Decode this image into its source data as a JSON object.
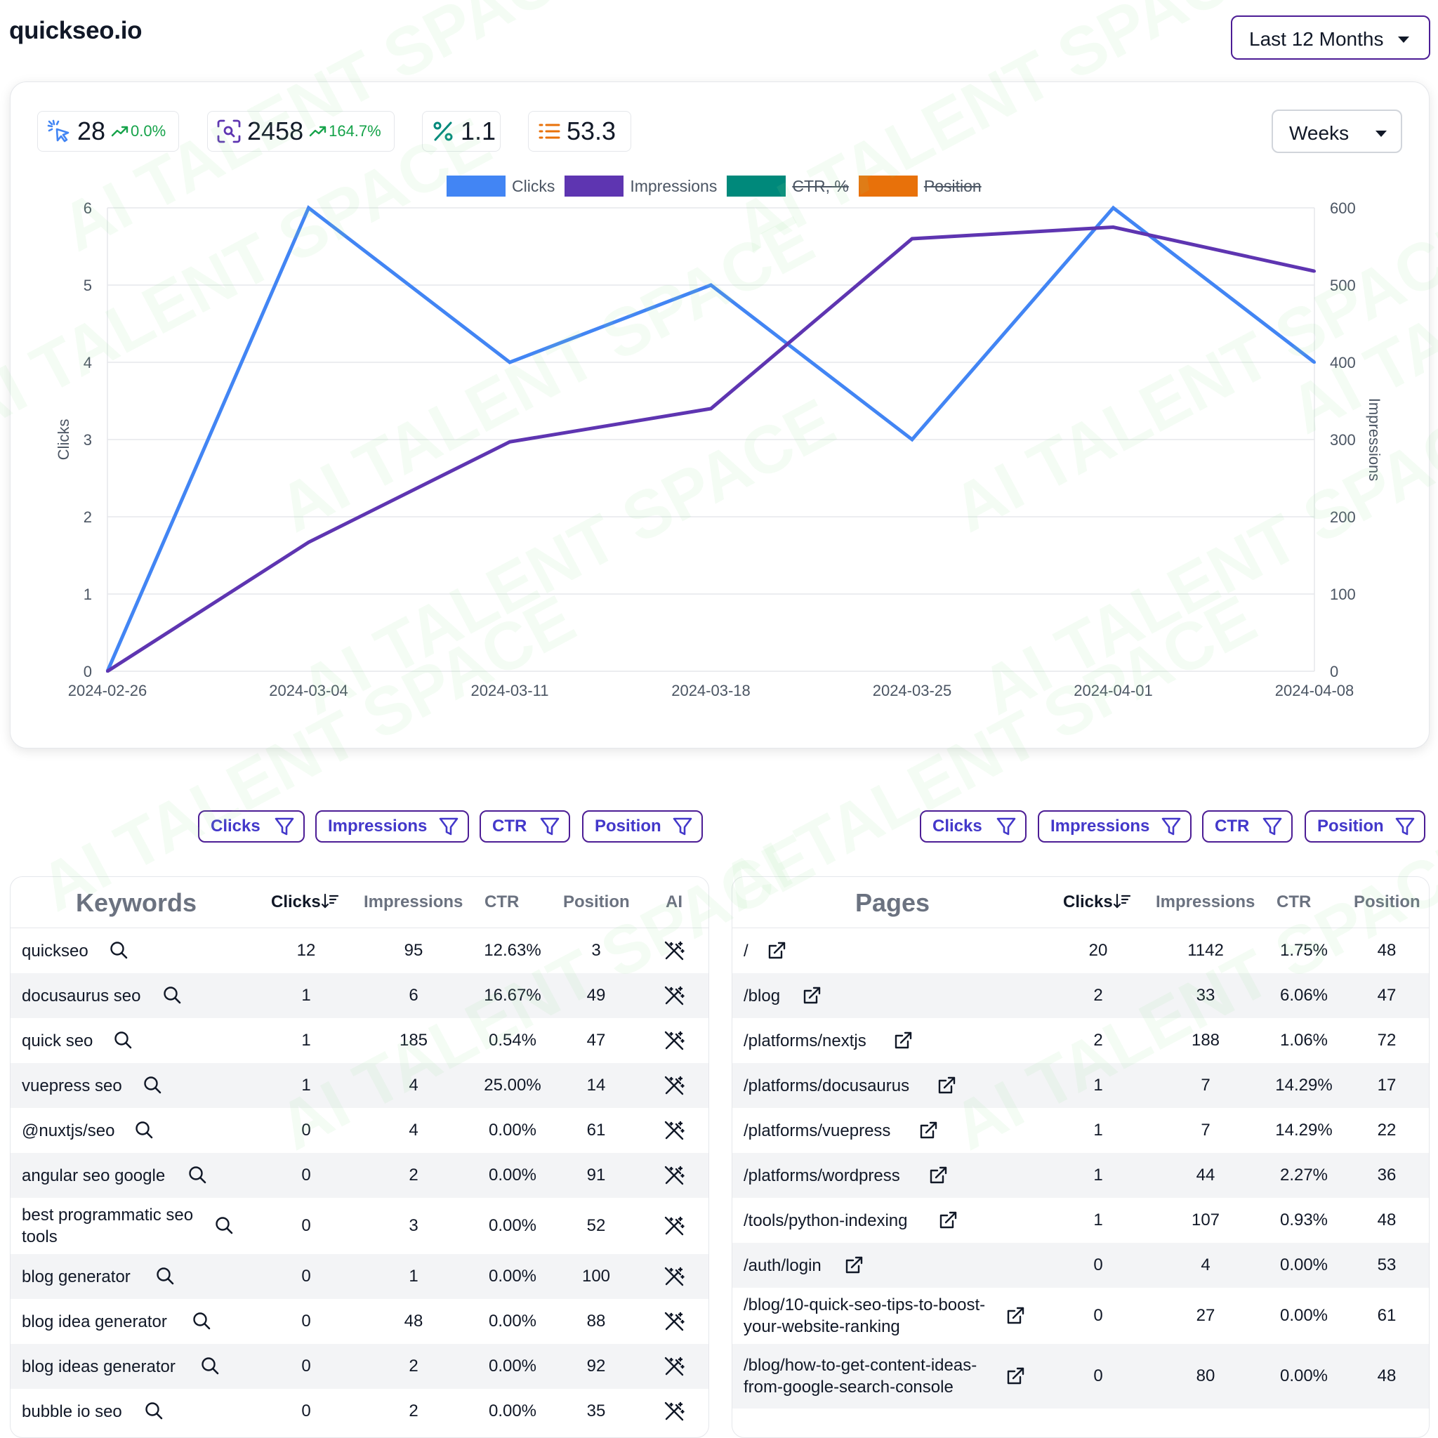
{
  "brand": "quickseo.io",
  "date_range": "Last 12 Months",
  "granularity": "Weeks",
  "stats": {
    "clicks": {
      "value": "28",
      "change": "0.0%"
    },
    "impressions": {
      "value": "2458",
      "change": "164.7%"
    },
    "ctr": {
      "value": "1.1"
    },
    "position": {
      "value": "53.3"
    }
  },
  "colors": {
    "clicks": "#4285f4",
    "impressions": "#5e35b1",
    "ctr": "#00897b",
    "position": "#e8710a",
    "accent": "#4338ca"
  },
  "legend": [
    {
      "label": "Clicks",
      "color": "#4285f4",
      "hidden": false
    },
    {
      "label": "Impressions",
      "color": "#5e35b1",
      "hidden": false
    },
    {
      "label": "CTR, %",
      "color": "#00897b",
      "hidden": true
    },
    {
      "label": "Position",
      "color": "#e8710a",
      "hidden": true
    }
  ],
  "chart_data": {
    "type": "line",
    "x": [
      "2024-02-26",
      "2024-03-04",
      "2024-03-11",
      "2024-03-18",
      "2024-03-25",
      "2024-04-01",
      "2024-04-08"
    ],
    "series": [
      {
        "name": "Clicks",
        "axis": "left",
        "values": [
          0,
          6,
          4,
          5,
          3,
          6,
          4
        ]
      },
      {
        "name": "Impressions",
        "axis": "right",
        "values": [
          0,
          167,
          297,
          340,
          560,
          575,
          518
        ]
      }
    ],
    "ylabel_left": "Clicks",
    "ylabel_right": "Impressions",
    "ylim_left": [
      0,
      6
    ],
    "ylim_right": [
      0,
      600
    ],
    "yticks_left": [
      "0",
      "1",
      "2",
      "3",
      "4",
      "5",
      "6"
    ],
    "yticks_right": [
      "0",
      "100",
      "200",
      "300",
      "400",
      "500",
      "600"
    ],
    "grid": true,
    "legend": "top-center"
  },
  "filters": [
    "Clicks",
    "Impressions",
    "CTR",
    "Position"
  ],
  "keywords_table": {
    "title": "Keywords",
    "columns": [
      "Clicks",
      "Impressions",
      "CTR",
      "Position",
      "AI"
    ],
    "rows": [
      {
        "keyword": "quickseo",
        "clicks": "12",
        "impressions": "95",
        "ctr": "12.63%",
        "position": "3"
      },
      {
        "keyword": "docusaurus seo",
        "clicks": "1",
        "impressions": "6",
        "ctr": "16.67%",
        "position": "49"
      },
      {
        "keyword": "quick seo",
        "clicks": "1",
        "impressions": "185",
        "ctr": "0.54%",
        "position": "47"
      },
      {
        "keyword": "vuepress seo",
        "clicks": "1",
        "impressions": "4",
        "ctr": "25.00%",
        "position": "14"
      },
      {
        "keyword": "@nuxtjs/seo",
        "clicks": "0",
        "impressions": "4",
        "ctr": "0.00%",
        "position": "61"
      },
      {
        "keyword": "angular seo google",
        "clicks": "0",
        "impressions": "2",
        "ctr": "0.00%",
        "position": "91"
      },
      {
        "keyword": "best programmatic seo tools",
        "clicks": "0",
        "impressions": "3",
        "ctr": "0.00%",
        "position": "52"
      },
      {
        "keyword": "blog generator",
        "clicks": "0",
        "impressions": "1",
        "ctr": "0.00%",
        "position": "100"
      },
      {
        "keyword": "blog idea generator",
        "clicks": "0",
        "impressions": "48",
        "ctr": "0.00%",
        "position": "88"
      },
      {
        "keyword": "blog ideas generator",
        "clicks": "0",
        "impressions": "2",
        "ctr": "0.00%",
        "position": "92"
      },
      {
        "keyword": "bubble io seo",
        "clicks": "0",
        "impressions": "2",
        "ctr": "0.00%",
        "position": "35"
      }
    ]
  },
  "pages_table": {
    "title": "Pages",
    "columns": [
      "Clicks",
      "Impressions",
      "CTR",
      "Position"
    ],
    "rows": [
      {
        "page": "/",
        "clicks": "20",
        "impressions": "1142",
        "ctr": "1.75%",
        "position": "48"
      },
      {
        "page": "/blog",
        "clicks": "2",
        "impressions": "33",
        "ctr": "6.06%",
        "position": "47"
      },
      {
        "page": "/platforms/nextjs",
        "clicks": "2",
        "impressions": "188",
        "ctr": "1.06%",
        "position": "72"
      },
      {
        "page": "/platforms/docusaurus",
        "clicks": "1",
        "impressions": "7",
        "ctr": "14.29%",
        "position": "17"
      },
      {
        "page": "/platforms/vuepress",
        "clicks": "1",
        "impressions": "7",
        "ctr": "14.29%",
        "position": "22"
      },
      {
        "page": "/platforms/wordpress",
        "clicks": "1",
        "impressions": "44",
        "ctr": "2.27%",
        "position": "36"
      },
      {
        "page": "/tools/python-indexing",
        "clicks": "1",
        "impressions": "107",
        "ctr": "0.93%",
        "position": "48"
      },
      {
        "page": "/auth/login",
        "clicks": "0",
        "impressions": "4",
        "ctr": "0.00%",
        "position": "53"
      },
      {
        "page": "/blog/10-quick-seo-tips-to-boost-your-website-ranking",
        "clicks": "0",
        "impressions": "27",
        "ctr": "0.00%",
        "position": "61"
      },
      {
        "page": "/blog/how-to-get-content-ideas-from-google-search-console",
        "clicks": "0",
        "impressions": "80",
        "ctr": "0.00%",
        "position": "48"
      }
    ]
  },
  "watermark": "AI TALENT SPACE"
}
